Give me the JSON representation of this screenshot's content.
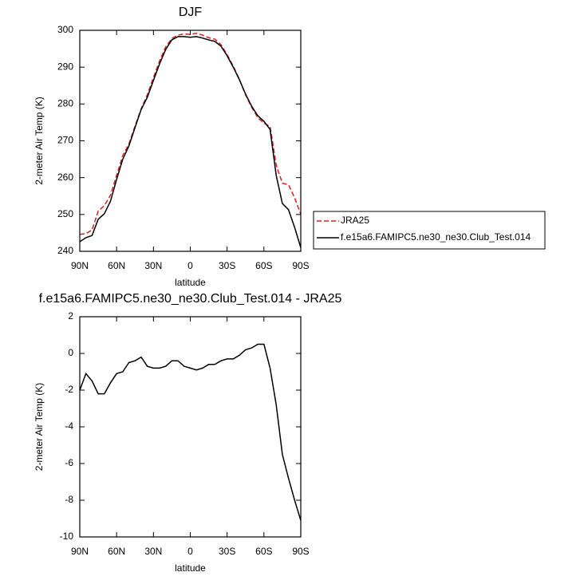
{
  "chart_data": [
    {
      "type": "line",
      "title": "DJF",
      "x_label": "latitude",
      "y_label": "2-meter Air Temp (K)",
      "x": [
        90,
        85,
        80,
        75,
        70,
        65,
        60,
        55,
        50,
        45,
        40,
        35,
        30,
        25,
        20,
        15,
        10,
        5,
        0,
        -5,
        -10,
        -15,
        -20,
        -25,
        -30,
        -35,
        -40,
        -45,
        -50,
        -55,
        -60,
        -65,
        -70,
        -75,
        -80,
        -85,
        -90
      ],
      "series": [
        {
          "name": "JRA25",
          "color": "#e41a1c",
          "line_style": "dashed",
          "values": [
            244.6,
            244.8,
            245.8,
            250.9,
            252.4,
            255.2,
            260.6,
            266,
            269.1,
            274,
            278.7,
            282.5,
            287.2,
            291.7,
            295.5,
            297.8,
            298.7,
            299,
            298.9,
            299.2,
            298.7,
            298,
            297.6,
            296.1,
            293.4,
            290.3,
            286.7,
            282.5,
            279.1,
            276.3,
            274.8,
            273.9,
            263.4,
            258.5,
            258.1,
            254.5,
            250.1
          ]
        },
        {
          "name": "f.e15a6.FAMIPC5.ne30_ne30.Club_Test.014",
          "color": "#000000",
          "line_style": "solid",
          "values": [
            242.6,
            243.7,
            244.3,
            248.7,
            250.2,
            253.6,
            259.5,
            265,
            268.6,
            273.6,
            278.5,
            281.8,
            286.4,
            290.9,
            294.8,
            297.4,
            298.3,
            298.3,
            298.1,
            298.3,
            297.9,
            297.4,
            297,
            295.7,
            293.1,
            290,
            286.6,
            282.7,
            279.4,
            276.8,
            275.3,
            273.1,
            260.6,
            253,
            251.3,
            246.5,
            241
          ]
        }
      ],
      "xlim": [
        90,
        -90
      ],
      "ylim": [
        240,
        300
      ],
      "xticks": [
        {
          "value": 90,
          "label": "90N"
        },
        {
          "value": 60,
          "label": "60N"
        },
        {
          "value": 30,
          "label": "30N"
        },
        0,
        {
          "value": -30,
          "label": "30S"
        },
        {
          "value": -60,
          "label": "60S"
        },
        {
          "value": -90,
          "label": "90S"
        }
      ],
      "yticks": [
        240,
        250,
        260,
        270,
        280,
        290,
        300
      ],
      "legend": "right"
    },
    {
      "type": "line",
      "title": "f.e15a6.FAMIPC5.ne30_ne30.Club_Test.014 - JRA25",
      "x_label": "latitude",
      "y_label": "2-meter Air Temp (K)",
      "x": [
        90,
        85,
        80,
        75,
        70,
        65,
        60,
        55,
        50,
        45,
        40,
        35,
        30,
        25,
        20,
        15,
        10,
        5,
        0,
        -5,
        -10,
        -15,
        -20,
        -25,
        -30,
        -35,
        -40,
        -45,
        -50,
        -55,
        -60,
        -65,
        -70,
        -75,
        -80,
        -85,
        -90
      ],
      "series": [
        {
          "color": "#000000",
          "line_style": "solid",
          "values": [
            -2,
            -1.1,
            -1.5,
            -2.2,
            -2.2,
            -1.6,
            -1.1,
            -1,
            -0.5,
            -0.4,
            -0.2,
            -0.7,
            -0.8,
            -0.8,
            -0.7,
            -0.4,
            -0.4,
            -0.7,
            -0.8,
            -0.9,
            -0.8,
            -0.6,
            -0.6,
            -0.4,
            -0.3,
            -0.3,
            -0.1,
            0.2,
            0.3,
            0.5,
            0.5,
            -0.8,
            -2.8,
            -5.5,
            -6.8,
            -8,
            -9.1
          ]
        }
      ],
      "xlim": [
        90,
        -90
      ],
      "ylim": [
        -10,
        2
      ],
      "xticks": [
        {
          "value": 90,
          "label": "90N"
        },
        {
          "value": 60,
          "label": "60N"
        },
        {
          "value": 30,
          "label": "30N"
        },
        0,
        {
          "value": -30,
          "label": "30S"
        },
        {
          "value": -60,
          "label": "60S"
        },
        {
          "value": -90,
          "label": "90S"
        }
      ],
      "yticks": [
        -10,
        -8,
        -6,
        -4,
        -2,
        0,
        2
      ]
    }
  ]
}
